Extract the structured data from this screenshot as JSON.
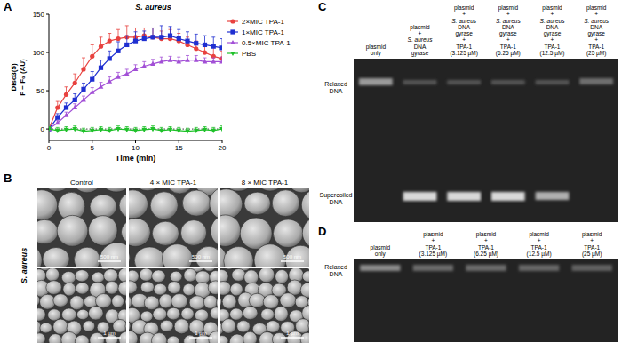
{
  "chart_data": {
    "type": "line",
    "title": "S. aureus",
    "x_label": "Time (min)",
    "y_label": [
      "Disc3(5)",
      "F − F₀ (AU)"
    ],
    "x": [
      0,
      1,
      2,
      3,
      4,
      5,
      6,
      7,
      8,
      9,
      10,
      11,
      12,
      13,
      14,
      15,
      16,
      17,
      18,
      19,
      20
    ],
    "xlim": [
      0,
      20
    ],
    "xticks": [
      0,
      5,
      10,
      15,
      20
    ],
    "ylim": [
      -15,
      150
    ],
    "yticks": [
      0,
      50,
      100,
      150
    ],
    "legend": "upper right",
    "series": [
      {
        "name": "2×MIC TPA-1",
        "color": "#e8423f",
        "marker": "circle",
        "values": [
          0,
          28,
          45,
          60,
          78,
          95,
          108,
          115,
          118,
          120,
          120,
          122,
          120,
          118,
          118,
          115,
          110,
          105,
          100,
          95,
          92
        ],
        "errors": [
          3,
          8,
          10,
          12,
          15,
          15,
          12,
          10,
          12,
          15,
          12,
          10,
          12,
          10,
          12,
          10,
          10,
          10,
          10,
          12,
          10
        ]
      },
      {
        "name": "1×MIC TPA-1",
        "color": "#1f2fd1",
        "marker": "square",
        "values": [
          0,
          15,
          28,
          38,
          52,
          65,
          80,
          92,
          102,
          110,
          115,
          118,
          120,
          120,
          122,
          118,
          115,
          112,
          110,
          108,
          106
        ],
        "errors": [
          3,
          5,
          6,
          8,
          8,
          10,
          10,
          10,
          12,
          12,
          12,
          10,
          12,
          15,
          12,
          12,
          12,
          12,
          12,
          12,
          12
        ]
      },
      {
        "name": "0.5×MIC TPA-1",
        "color": "#a24fd6",
        "marker": "triangle",
        "values": [
          0,
          8,
          18,
          28,
          38,
          48,
          55,
          62,
          68,
          72,
          78,
          82,
          85,
          88,
          90,
          88,
          90,
          90,
          88,
          88,
          88
        ],
        "errors": [
          2,
          3,
          4,
          5,
          5,
          6,
          6,
          6,
          6,
          6,
          6,
          6,
          6,
          6,
          5,
          6,
          6,
          6,
          5,
          5,
          6
        ]
      },
      {
        "name": "PBS",
        "color": "#1fc12a",
        "marker": "triangle-down",
        "values": [
          0,
          -2,
          -1,
          0,
          -3,
          -2,
          -1,
          -2,
          0,
          -1,
          -2,
          -1,
          0,
          -2,
          -1,
          -2,
          -3,
          -2,
          -1,
          -2,
          0
        ],
        "errors": [
          3,
          4,
          4,
          4,
          4,
          4,
          4,
          4,
          4,
          4,
          4,
          4,
          4,
          4,
          4,
          4,
          4,
          4,
          4,
          4,
          4
        ]
      }
    ]
  },
  "panel_labels": [
    "A",
    "B",
    "C",
    "D"
  ],
  "sem": {
    "row_label": "S. aureus",
    "columns": [
      "Control",
      "4 × MIC TPA-1",
      "8 × MIC TPA-1"
    ],
    "scale_bars": [
      "500 nm",
      "1 µm"
    ]
  },
  "gel_c": {
    "lanes": [
      [
        "plasmid",
        "only"
      ],
      [
        "plasmid",
        "+",
        "S. aureus",
        "DNA",
        "gyrase"
      ],
      [
        "plasmid",
        "+",
        "S. aureus",
        "DNA",
        "gyrase",
        "+",
        "TPA-1",
        "(3.125 µM)"
      ],
      [
        "plasmid",
        "+",
        "S. aureus",
        "DNA",
        "gyrase",
        "+",
        "TPA-1",
        "(6.25 µM)"
      ],
      [
        "plasmid",
        "+",
        "S. aureus",
        "DNA",
        "gyrase",
        "+",
        "TPA-1",
        "(12.5 µM)"
      ],
      [
        "plasmid",
        "+",
        "S. aureus",
        "DNA",
        "gyrase",
        "+",
        "TPA-1",
        "(25 µM)"
      ]
    ],
    "relaxed": [
      "Relaxed",
      "DNA"
    ],
    "supercoiled": [
      "Supercoiled",
      "DNA"
    ]
  },
  "gel_d": {
    "lanes": [
      [
        "plasmid",
        "only"
      ],
      [
        "plasmid",
        "+",
        "TPA-1",
        "(3.125 µM)"
      ],
      [
        "plasmid",
        "+",
        "TPA-1",
        "(6.25 µM)"
      ],
      [
        "plasmid",
        "+",
        "TPA-1",
        "(12.5 µM)"
      ],
      [
        "plasmid",
        "+",
        "TPA-1",
        "(25 µM)"
      ]
    ],
    "relaxed": [
      "Relaxed",
      "DNA"
    ]
  }
}
